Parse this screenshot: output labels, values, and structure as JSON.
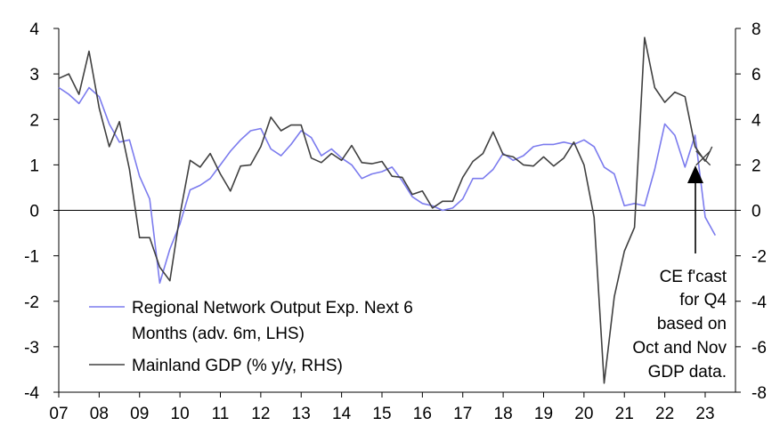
{
  "chart_data": {
    "type": "line",
    "x_tick_labels": [
      "07",
      "08",
      "09",
      "10",
      "11",
      "12",
      "13",
      "14",
      "15",
      "16",
      "17",
      "18",
      "19",
      "20",
      "21",
      "22",
      "23"
    ],
    "left_axis": {
      "ylim": [
        -4,
        4
      ],
      "ticks": [
        "4",
        "3",
        "2",
        "1",
        "0",
        "-1",
        "-2",
        "-3",
        "-4"
      ]
    },
    "right_axis": {
      "ylim": [
        -8,
        8
      ],
      "ticks": [
        "8",
        "6",
        "4",
        "2",
        "0",
        "-2",
        "-4",
        "-6",
        "-8"
      ]
    },
    "legend": [
      {
        "label_line1": "Regional Network Output Exp. Next 6",
        "label_line2": "Months (adv. 6m, LHS)",
        "color": "#7b7bee"
      },
      {
        "label_line1": "Mainland GDP (% y/y, RHS)",
        "label_line2": "",
        "color": "#404040"
      }
    ],
    "annotation": {
      "lines": [
        "CE f'cast",
        "for Q4",
        "based on",
        "Oct and Nov",
        "GDP data."
      ],
      "forecast_marker_x": 2022.95,
      "forecast_marker_rhs": 2.3
    },
    "series": [
      {
        "name": "Regional Network Output Exp. Next 6 Months (adv. 6m, LHS)",
        "axis": "left",
        "color": "#7b7bee",
        "x": [
          2007.0,
          2007.25,
          2007.5,
          2007.75,
          2008.0,
          2008.25,
          2008.5,
          2008.75,
          2009.0,
          2009.25,
          2009.5,
          2009.75,
          2010.0,
          2010.25,
          2010.5,
          2010.75,
          2011.0,
          2011.25,
          2011.5,
          2011.75,
          2012.0,
          2012.25,
          2012.5,
          2012.75,
          2013.0,
          2013.25,
          2013.5,
          2013.75,
          2014.0,
          2014.25,
          2014.5,
          2014.75,
          2015.0,
          2015.25,
          2015.5,
          2015.75,
          2016.0,
          2016.25,
          2016.5,
          2016.75,
          2017.0,
          2017.25,
          2017.5,
          2017.75,
          2018.0,
          2018.25,
          2018.5,
          2018.75,
          2019.0,
          2019.25,
          2019.5,
          2019.75,
          2020.0,
          2020.25,
          2020.5,
          2020.75,
          2021.0,
          2021.25,
          2021.5,
          2021.75,
          2022.0,
          2022.25,
          2022.5,
          2022.75,
          2023.0,
          2023.25
        ],
        "values": [
          2.7,
          2.55,
          2.35,
          2.7,
          2.5,
          1.9,
          1.5,
          1.55,
          0.75,
          0.25,
          -1.6,
          -0.85,
          -0.3,
          0.45,
          0.55,
          0.7,
          1.0,
          1.3,
          1.55,
          1.75,
          1.8,
          1.35,
          1.2,
          1.45,
          1.75,
          1.6,
          1.2,
          1.35,
          1.15,
          1.0,
          0.7,
          0.8,
          0.85,
          0.95,
          0.65,
          0.3,
          0.15,
          0.1,
          0.0,
          0.05,
          0.25,
          0.7,
          0.7,
          0.9,
          1.25,
          1.1,
          1.2,
          1.4,
          1.45,
          1.45,
          1.5,
          1.45,
          1.55,
          1.4,
          0.95,
          0.8,
          0.1,
          0.15,
          0.1,
          0.9,
          1.9,
          1.65,
          0.95,
          1.65,
          -0.15,
          -0.55
        ]
      },
      {
        "name": "Mainland GDP (% y/y, RHS)",
        "axis": "right",
        "color": "#404040",
        "x": [
          2007.0,
          2007.25,
          2007.5,
          2007.75,
          2008.0,
          2008.25,
          2008.5,
          2008.75,
          2009.0,
          2009.25,
          2009.5,
          2009.75,
          2010.0,
          2010.25,
          2010.5,
          2010.75,
          2011.0,
          2011.25,
          2011.5,
          2011.75,
          2012.0,
          2012.25,
          2012.5,
          2012.75,
          2013.0,
          2013.25,
          2013.5,
          2013.75,
          2014.0,
          2014.25,
          2014.5,
          2014.75,
          2015.0,
          2015.25,
          2015.5,
          2015.75,
          2016.0,
          2016.25,
          2016.5,
          2016.75,
          2017.0,
          2017.25,
          2017.5,
          2017.75,
          2018.0,
          2018.25,
          2018.5,
          2018.75,
          2019.0,
          2019.25,
          2019.5,
          2019.75,
          2020.0,
          2020.25,
          2020.5,
          2020.75,
          2021.0,
          2021.25,
          2021.5,
          2021.75,
          2022.0,
          2022.25,
          2022.5,
          2022.75,
          2023.0
        ],
        "values": [
          5.8,
          6.0,
          5.1,
          7.0,
          4.5,
          2.8,
          3.9,
          1.8,
          -1.2,
          -1.2,
          -2.5,
          -3.1,
          -0.2,
          2.2,
          1.9,
          2.5,
          1.6,
          0.85,
          1.95,
          2.0,
          2.8,
          4.1,
          3.5,
          3.75,
          3.75,
          2.3,
          2.1,
          2.5,
          2.2,
          2.85,
          2.1,
          2.05,
          2.15,
          1.5,
          1.45,
          0.7,
          0.85,
          0.1,
          0.4,
          0.4,
          1.45,
          2.15,
          2.5,
          3.45,
          2.45,
          2.35,
          2.0,
          1.95,
          2.35,
          1.95,
          2.3,
          3.0,
          2.0,
          -0.3,
          -7.6,
          -3.8,
          -1.8,
          -0.75,
          7.6,
          5.4,
          4.75,
          5.2,
          5.0,
          2.8,
          2.15
        ]
      }
    ]
  }
}
